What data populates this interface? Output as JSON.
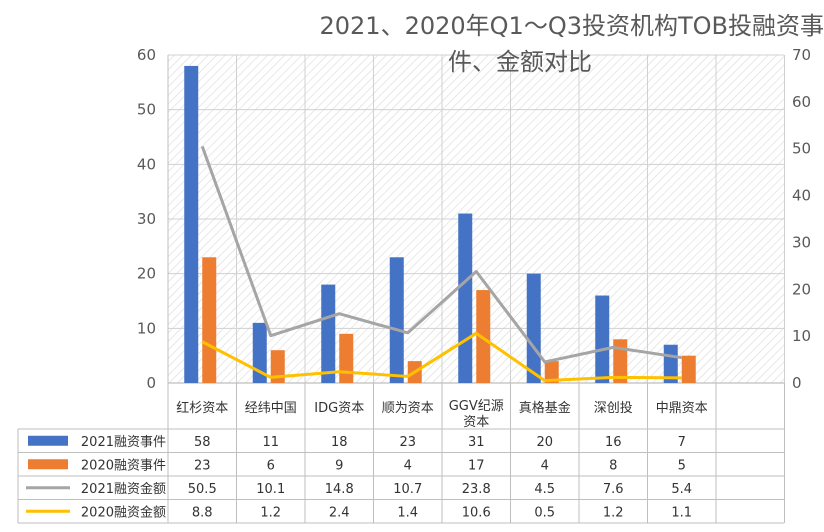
{
  "chart_data": {
    "type": "bar",
    "title_line1": "2021、2020年Q1～Q3投资机构TOB投融资事",
    "title_line2": "件、金额对比",
    "categories": [
      "红杉资本",
      "经纬中国",
      "IDG资本",
      "顺为资本",
      "GGV纪源资本",
      "真格基金",
      "深创投",
      "中鼎资本"
    ],
    "series": [
      {
        "name": "2021融资事件",
        "kind": "bar",
        "axis": "left",
        "color": "#4472C4",
        "values": [
          58,
          11,
          18,
          23,
          31,
          20,
          16,
          7
        ]
      },
      {
        "name": "2020融资事件",
        "kind": "bar",
        "axis": "left",
        "color": "#ED7D31",
        "values": [
          23,
          6,
          9,
          4,
          17,
          4,
          8,
          5
        ]
      },
      {
        "name": "2021融资金额",
        "kind": "line",
        "axis": "right",
        "color": "#A5A5A5",
        "values": [
          50.5,
          10.1,
          14.8,
          10.7,
          23.8,
          4.5,
          7.6,
          5.4
        ]
      },
      {
        "name": "2020融资金额",
        "kind": "line",
        "axis": "right",
        "color": "#FFC000",
        "values": [
          8.8,
          1.2,
          2.4,
          1.4,
          10.6,
          0.5,
          1.2,
          1.1
        ]
      }
    ],
    "y_left": {
      "ticks": [
        "0",
        "10",
        "20",
        "30",
        "40",
        "50",
        "60"
      ],
      "min": 0,
      "max": 60
    },
    "y_right": {
      "ticks": [
        "0",
        "10",
        "20",
        "30",
        "40",
        "50",
        "60",
        "70"
      ],
      "min": 0,
      "max": 70
    },
    "grid": true,
    "data_table": true
  }
}
